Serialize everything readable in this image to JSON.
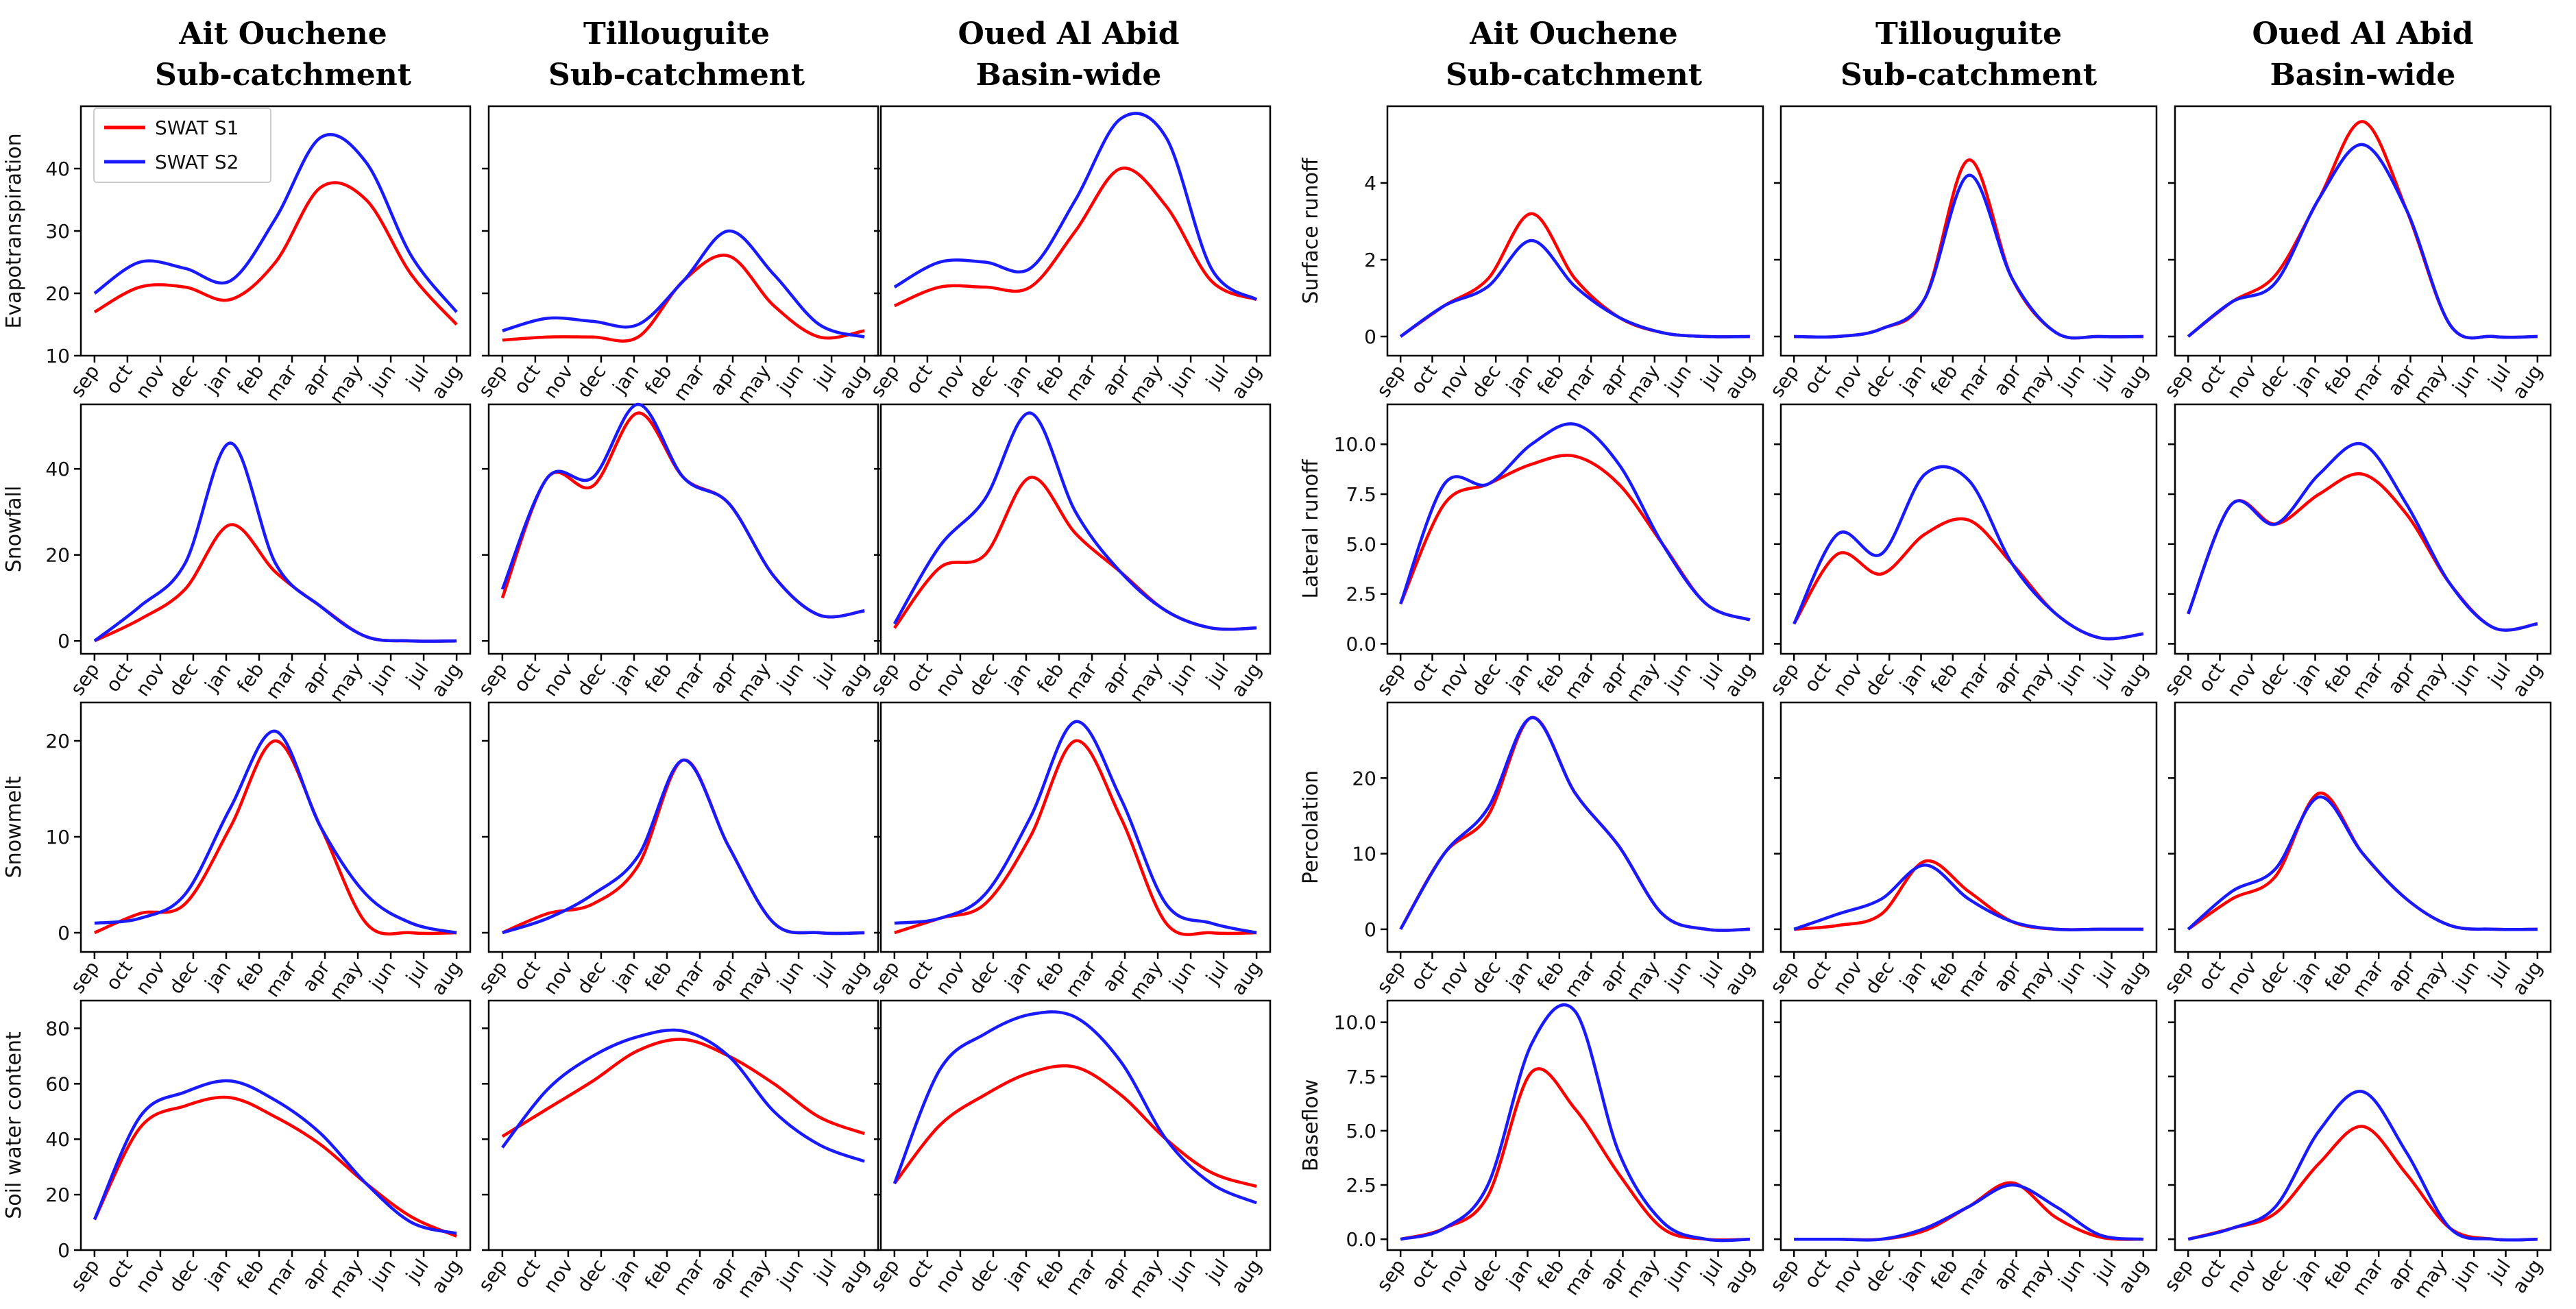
{
  "colors": {
    "s1": "#ff0000",
    "s2": "#1a1aff",
    "axis": "#000000"
  },
  "legend": {
    "s1": "SWAT S1",
    "s2": "SWAT S2",
    "placement": "top-left"
  },
  "months": [
    "sep",
    "oct",
    "nov",
    "dec",
    "jan",
    "feb",
    "mar",
    "apr",
    "may",
    "jun",
    "jul",
    "aug"
  ],
  "column_titles": [
    {
      "line1": "Ait Ouchene",
      "line2": "Sub-catchment"
    },
    {
      "line1": "Tillouguite",
      "line2": "Sub-catchment"
    },
    {
      "line1": "Oued Al Abid",
      "line2": "Basin-wide"
    },
    {
      "line1": "Ait Ouchene",
      "line2": "Sub-catchment"
    },
    {
      "line1": "Tillouguite",
      "line2": "Sub-catchment"
    },
    {
      "line1": "Oued Al Abid",
      "line2": "Basin-wide"
    }
  ],
  "chart_data": [
    {
      "type": "line",
      "group": "left",
      "row": 0,
      "col": 0,
      "ylabel": "Evapotranspiration",
      "ylim": [
        10,
        50
      ],
      "yticks": [
        10,
        20,
        30,
        40
      ],
      "yticklabels": [
        "10",
        "20",
        "30",
        "40"
      ],
      "series": [
        {
          "name": "SWAT S1",
          "values": [
            17,
            21,
            21,
            19,
            25,
            37,
            35,
            23,
            15
          ]
        },
        {
          "name": "SWAT S2",
          "values": [
            20,
            25,
            24,
            22,
            32,
            45,
            41,
            26,
            17
          ]
        }
      ]
    },
    {
      "type": "line",
      "group": "left",
      "row": 0,
      "col": 1,
      "ylabel": "",
      "ylim": [
        10,
        50
      ],
      "yticks": [
        10,
        20,
        30,
        40
      ],
      "yticklabels": [
        "",
        "",
        "",
        ""
      ],
      "series": [
        {
          "name": "SWAT S1",
          "values": [
            12.5,
            13,
            13,
            13,
            22,
            26,
            18,
            13,
            14
          ]
        },
        {
          "name": "SWAT S2",
          "values": [
            14,
            16,
            15.5,
            15,
            22,
            30,
            23,
            15,
            13
          ]
        }
      ]
    },
    {
      "type": "line",
      "group": "left",
      "row": 0,
      "col": 2,
      "ylabel": "",
      "ylim": [
        10,
        50
      ],
      "yticks": [
        10,
        20,
        30,
        40
      ],
      "yticklabels": [
        "",
        "",
        "",
        ""
      ],
      "series": [
        {
          "name": "SWAT S1",
          "values": [
            18,
            21,
            21,
            21,
            30,
            40,
            34,
            22,
            19
          ]
        },
        {
          "name": "SWAT S2",
          "values": [
            21,
            25,
            25,
            24,
            35,
            48,
            45,
            24,
            19
          ]
        }
      ]
    },
    {
      "type": "line",
      "group": "left",
      "row": 1,
      "col": 0,
      "ylabel": "Snowfall",
      "ylim": [
        -3,
        55
      ],
      "yticks": [
        0,
        20,
        40
      ],
      "yticklabels": [
        "0",
        "20",
        "40"
      ],
      "series": [
        {
          "name": "SWAT S1",
          "values": [
            0,
            5,
            12,
            27,
            16,
            8,
            1,
            0,
            0
          ]
        },
        {
          "name": "SWAT S2",
          "values": [
            0,
            8,
            18,
            46,
            18,
            8,
            1,
            0,
            0
          ]
        }
      ]
    },
    {
      "type": "line",
      "group": "left",
      "row": 1,
      "col": 1,
      "ylabel": "",
      "ylim": [
        -3,
        55
      ],
      "yticks": [
        0,
        20,
        40
      ],
      "yticklabels": [
        "",
        "",
        ""
      ],
      "series": [
        {
          "name": "SWAT S1",
          "values": [
            10,
            38,
            36,
            53,
            38,
            32,
            15,
            6,
            7
          ]
        },
        {
          "name": "SWAT S2",
          "values": [
            12,
            38,
            38,
            55,
            38,
            32,
            15,
            6,
            7
          ]
        }
      ]
    },
    {
      "type": "line",
      "group": "left",
      "row": 1,
      "col": 2,
      "ylabel": "",
      "ylim": [
        -3,
        55
      ],
      "yticks": [
        0,
        20,
        40
      ],
      "yticklabels": [
        "",
        "",
        ""
      ],
      "series": [
        {
          "name": "SWAT S1",
          "values": [
            3,
            17,
            20,
            38,
            25,
            16,
            7,
            3,
            3
          ]
        },
        {
          "name": "SWAT S2",
          "values": [
            4,
            22,
            33,
            53,
            30,
            16,
            7,
            3,
            3
          ]
        }
      ]
    },
    {
      "type": "line",
      "group": "left",
      "row": 2,
      "col": 0,
      "ylabel": "Snowmelt",
      "ylim": [
        -2,
        24
      ],
      "yticks": [
        0,
        10,
        20
      ],
      "yticklabels": [
        "0",
        "10",
        "20"
      ],
      "series": [
        {
          "name": "SWAT S1",
          "values": [
            0,
            2,
            3,
            11,
            20,
            11,
            1,
            0,
            0
          ]
        },
        {
          "name": "SWAT S2",
          "values": [
            1,
            1.5,
            4,
            13,
            21,
            11,
            4,
            1,
            0
          ]
        }
      ]
    },
    {
      "type": "line",
      "group": "left",
      "row": 2,
      "col": 1,
      "ylabel": "",
      "ylim": [
        -2,
        24
      ],
      "yticks": [
        0,
        10,
        20
      ],
      "yticklabels": [
        "",
        "",
        ""
      ],
      "series": [
        {
          "name": "SWAT S1",
          "values": [
            0,
            2,
            3,
            7,
            18,
            9,
            1,
            0,
            0
          ]
        },
        {
          "name": "SWAT S2",
          "values": [
            0,
            1.5,
            4,
            8,
            18,
            9,
            1,
            0,
            0
          ]
        }
      ]
    },
    {
      "type": "line",
      "group": "left",
      "row": 2,
      "col": 2,
      "ylabel": "",
      "ylim": [
        -2,
        24
      ],
      "yticks": [
        0,
        10,
        20
      ],
      "yticklabels": [
        "",
        "",
        ""
      ],
      "series": [
        {
          "name": "SWAT S1",
          "values": [
            0,
            1.5,
            3,
            10,
            20,
            12,
            1,
            0,
            0
          ]
        },
        {
          "name": "SWAT S2",
          "values": [
            1,
            1.5,
            4,
            12,
            22,
            14,
            3,
            1,
            0
          ]
        }
      ]
    },
    {
      "type": "line",
      "group": "left",
      "row": 3,
      "col": 0,
      "ylabel": "Soil water content",
      "ylim": [
        0,
        90
      ],
      "yticks": [
        0,
        20,
        40,
        60,
        80
      ],
      "yticklabels": [
        "0",
        "20",
        "40",
        "60",
        "80"
      ],
      "series": [
        {
          "name": "SWAT S1",
          "values": [
            11,
            44,
            52,
            55,
            48,
            38,
            24,
            12,
            5
          ]
        },
        {
          "name": "SWAT S2",
          "values": [
            11,
            48,
            57,
            61,
            54,
            42,
            24,
            10,
            6
          ]
        }
      ]
    },
    {
      "type": "line",
      "group": "left",
      "row": 3,
      "col": 1,
      "ylabel": "",
      "ylim": [
        0,
        90
      ],
      "yticks": [
        0,
        20,
        40,
        60,
        80
      ],
      "yticklabels": [
        "",
        "",
        "",
        "",
        ""
      ],
      "series": [
        {
          "name": "SWAT S1",
          "values": [
            41,
            51,
            61,
            72,
            76,
            70,
            60,
            48,
            42
          ]
        },
        {
          "name": "SWAT S2",
          "values": [
            37,
            58,
            70,
            77,
            79,
            70,
            50,
            38,
            32
          ]
        }
      ]
    },
    {
      "type": "line",
      "group": "left",
      "row": 3,
      "col": 2,
      "ylabel": "",
      "ylim": [
        0,
        90
      ],
      "yticks": [
        0,
        20,
        40,
        60,
        80
      ],
      "yticklabels": [
        "",
        "",
        "",
        "",
        ""
      ],
      "series": [
        {
          "name": "SWAT S1",
          "values": [
            24,
            45,
            56,
            64,
            66,
            56,
            40,
            28,
            23
          ]
        },
        {
          "name": "SWAT S2",
          "values": [
            24,
            65,
            78,
            85,
            84,
            68,
            40,
            24,
            17
          ]
        }
      ]
    },
    {
      "type": "line",
      "group": "right",
      "row": 0,
      "col": 0,
      "ylabel": "Surface runoff",
      "ylim": [
        -0.5,
        6
      ],
      "yticks": [
        0,
        2,
        4
      ],
      "yticklabels": [
        "0",
        "2",
        "4"
      ],
      "series": [
        {
          "name": "SWAT S1",
          "values": [
            0,
            0.8,
            1.5,
            3.2,
            1.5,
            0.5,
            0.1,
            0,
            0
          ]
        },
        {
          "name": "SWAT S2",
          "values": [
            0,
            0.8,
            1.3,
            2.5,
            1.3,
            0.5,
            0.1,
            0,
            0
          ]
        }
      ]
    },
    {
      "type": "line",
      "group": "right",
      "row": 0,
      "col": 1,
      "ylabel": "",
      "ylim": [
        -0.5,
        6
      ],
      "yticks": [
        0,
        2,
        4
      ],
      "yticklabels": [
        "",
        "",
        ""
      ],
      "series": [
        {
          "name": "SWAT S1",
          "values": [
            0,
            0,
            0.2,
            1,
            4.6,
            1.5,
            0.1,
            0,
            0
          ]
        },
        {
          "name": "SWAT S2",
          "values": [
            0,
            0,
            0.2,
            1,
            4.2,
            1.5,
            0.1,
            0,
            0
          ]
        }
      ]
    },
    {
      "type": "line",
      "group": "right",
      "row": 0,
      "col": 2,
      "ylabel": "",
      "ylim": [
        -0.5,
        6
      ],
      "yticks": [
        0,
        2,
        4
      ],
      "yticklabels": [
        "",
        "",
        ""
      ],
      "series": [
        {
          "name": "SWAT S1",
          "values": [
            0,
            0.9,
            1.6,
            3.6,
            5.6,
            3.3,
            0.3,
            0,
            0
          ]
        },
        {
          "name": "SWAT S2",
          "values": [
            0,
            0.9,
            1.4,
            3.6,
            5,
            3.3,
            0.3,
            0,
            0
          ]
        }
      ]
    },
    {
      "type": "line",
      "group": "right",
      "row": 1,
      "col": 0,
      "ylabel": "Lateral runoff",
      "ylim": [
        -0.5,
        12
      ],
      "yticks": [
        0,
        2.5,
        5,
        7.5,
        10
      ],
      "yticklabels": [
        "0.0",
        "2.5",
        "5.0",
        "7.5",
        "10.0"
      ],
      "series": [
        {
          "name": "SWAT S1",
          "values": [
            2,
            7,
            8,
            9,
            9.4,
            8,
            5,
            2,
            1.2
          ]
        },
        {
          "name": "SWAT S2",
          "values": [
            2,
            8,
            8,
            10,
            11,
            9,
            5,
            2,
            1.2
          ]
        }
      ]
    },
    {
      "type": "line",
      "group": "right",
      "row": 1,
      "col": 1,
      "ylabel": "",
      "ylim": [
        -0.5,
        12
      ],
      "yticks": [
        0,
        2.5,
        5,
        7.5,
        10
      ],
      "yticklabels": [
        "",
        "",
        "",
        "",
        ""
      ],
      "series": [
        {
          "name": "SWAT S1",
          "values": [
            1,
            4.5,
            3.5,
            5.5,
            6.2,
            4,
            1.5,
            0.3,
            0.5
          ]
        },
        {
          "name": "SWAT S2",
          "values": [
            1,
            5.5,
            4.5,
            8.5,
            8.2,
            4,
            1.5,
            0.3,
            0.5
          ]
        }
      ]
    },
    {
      "type": "line",
      "group": "right",
      "row": 1,
      "col": 2,
      "ylabel": "",
      "ylim": [
        -0.5,
        12
      ],
      "yticks": [
        0,
        2.5,
        5,
        7.5,
        10
      ],
      "yticklabels": [
        "",
        "",
        "",
        "",
        ""
      ],
      "series": [
        {
          "name": "SWAT S1",
          "values": [
            1.5,
            7,
            6,
            7.5,
            8.5,
            6.5,
            3,
            0.8,
            1
          ]
        },
        {
          "name": "SWAT S2",
          "values": [
            1.5,
            7,
            6,
            8.5,
            10,
            7,
            3,
            0.8,
            1
          ]
        }
      ]
    },
    {
      "type": "line",
      "group": "right",
      "row": 2,
      "col": 0,
      "ylabel": "Percolation",
      "ylim": [
        -3,
        30
      ],
      "yticks": [
        0,
        10,
        20
      ],
      "yticklabels": [
        "0",
        "10",
        "20"
      ],
      "series": [
        {
          "name": "SWAT S1",
          "values": [
            0,
            10,
            15,
            28,
            18,
            11,
            2,
            0,
            0
          ]
        },
        {
          "name": "SWAT S2",
          "values": [
            0,
            10,
            16,
            28,
            18,
            11,
            2,
            0,
            0
          ]
        }
      ]
    },
    {
      "type": "line",
      "group": "right",
      "row": 2,
      "col": 1,
      "ylabel": "",
      "ylim": [
        -3,
        30
      ],
      "yticks": [
        0,
        10,
        20
      ],
      "yticklabels": [
        "",
        "",
        ""
      ],
      "series": [
        {
          "name": "SWAT S1",
          "values": [
            0,
            0.5,
            2,
            9,
            5,
            1,
            0,
            0,
            0
          ]
        },
        {
          "name": "SWAT S2",
          "values": [
            0,
            2,
            4,
            8.5,
            4,
            1,
            0,
            0,
            0
          ]
        }
      ]
    },
    {
      "type": "line",
      "group": "right",
      "row": 2,
      "col": 2,
      "ylabel": "",
      "ylim": [
        -3,
        30
      ],
      "yticks": [
        0,
        10,
        20
      ],
      "yticklabels": [
        "",
        "",
        ""
      ],
      "series": [
        {
          "name": "SWAT S1",
          "values": [
            0,
            4,
            7,
            18,
            10,
            4,
            0.5,
            0,
            0
          ]
        },
        {
          "name": "SWAT S2",
          "values": [
            0,
            5,
            8,
            17.5,
            10,
            4,
            0.5,
            0,
            0
          ]
        }
      ]
    },
    {
      "type": "line",
      "group": "right",
      "row": 3,
      "col": 0,
      "ylabel": "Baseflow",
      "ylim": [
        -0.5,
        11
      ],
      "yticks": [
        0,
        2.5,
        5,
        7.5,
        10
      ],
      "yticklabels": [
        "0.0",
        "2.5",
        "5.0",
        "7.5",
        "10.0"
      ],
      "series": [
        {
          "name": "SWAT S1",
          "values": [
            0,
            0.5,
            2,
            7.7,
            6,
            3,
            0.5,
            0,
            0
          ]
        },
        {
          "name": "SWAT S2",
          "values": [
            0,
            0.5,
            2.5,
            9,
            10.5,
            4,
            0.8,
            0,
            0
          ]
        }
      ]
    },
    {
      "type": "line",
      "group": "right",
      "row": 3,
      "col": 1,
      "ylabel": "",
      "ylim": [
        -0.5,
        11
      ],
      "yticks": [
        0,
        2.5,
        5,
        7.5,
        10
      ],
      "yticklabels": [
        "",
        "",
        "",
        "",
        ""
      ],
      "series": [
        {
          "name": "SWAT S1",
          "values": [
            0,
            0,
            0,
            0.4,
            1.5,
            2.6,
            1,
            0.1,
            0
          ]
        },
        {
          "name": "SWAT S2",
          "values": [
            0,
            0,
            0,
            0.5,
            1.5,
            2.5,
            1.5,
            0.2,
            0
          ]
        }
      ]
    },
    {
      "type": "line",
      "group": "right",
      "row": 3,
      "col": 2,
      "ylabel": "",
      "ylim": [
        -0.5,
        11
      ],
      "yticks": [
        0,
        2.5,
        5,
        7.5,
        10
      ],
      "yticklabels": [
        "",
        "",
        "",
        "",
        ""
      ],
      "series": [
        {
          "name": "SWAT S1",
          "values": [
            0,
            0.5,
            1.2,
            3.5,
            5.2,
            3,
            0.5,
            0,
            0
          ]
        },
        {
          "name": "SWAT S2",
          "values": [
            0,
            0.5,
            1.5,
            5,
            6.8,
            4,
            0.5,
            0,
            0
          ]
        }
      ]
    }
  ]
}
